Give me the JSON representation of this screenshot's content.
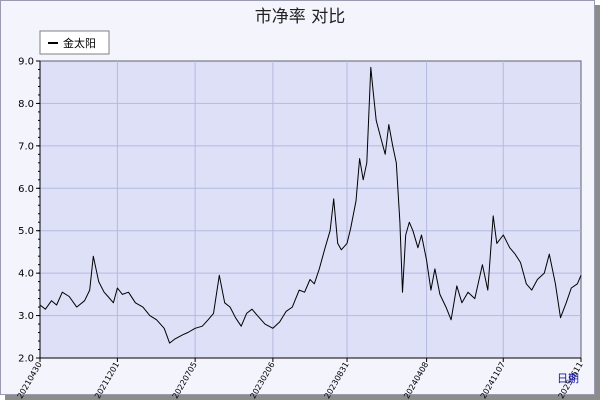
{
  "chart_data": {
    "type": "line",
    "title": "市净率  对比",
    "xlabel": "日期",
    "ylabel": "",
    "ylim": [
      2.0,
      9.0
    ],
    "yticks": [
      "2.0",
      "3.0",
      "4.0",
      "5.0",
      "6.0",
      "7.0",
      "8.0",
      "9.0"
    ],
    "x_ticks": [
      "20210430",
      "20211201",
      "20220705",
      "20230206",
      "20230831",
      "20240408",
      "20241107",
      "20250611"
    ],
    "grid": true,
    "legend_position": "top-left",
    "series": [
      {
        "name": "金太阳",
        "color": "#000000",
        "points": [
          [
            "20210430",
            3.25
          ],
          [
            "20210515",
            3.15
          ],
          [
            "20210601",
            3.35
          ],
          [
            "20210615",
            3.25
          ],
          [
            "20210701",
            3.55
          ],
          [
            "20210720",
            3.45
          ],
          [
            "20210810",
            3.2
          ],
          [
            "20210901",
            3.35
          ],
          [
            "20210915",
            3.6
          ],
          [
            "20210925",
            4.4
          ],
          [
            "20211010",
            3.8
          ],
          [
            "20211025",
            3.55
          ],
          [
            "20211105",
            3.45
          ],
          [
            "20211120",
            3.3
          ],
          [
            "20211201",
            3.65
          ],
          [
            "20211215",
            3.5
          ],
          [
            "20220101",
            3.55
          ],
          [
            "20220120",
            3.3
          ],
          [
            "20220210",
            3.2
          ],
          [
            "20220301",
            3.0
          ],
          [
            "20220320",
            2.9
          ],
          [
            "20220410",
            2.7
          ],
          [
            "20220425",
            2.35
          ],
          [
            "20220510",
            2.45
          ],
          [
            "20220601",
            2.55
          ],
          [
            "20220615",
            2.6
          ],
          [
            "20220705",
            2.7
          ],
          [
            "20220725",
            2.75
          ],
          [
            "20220810",
            2.9
          ],
          [
            "20220825",
            3.05
          ],
          [
            "20220910",
            3.95
          ],
          [
            "20220925",
            3.3
          ],
          [
            "20221010",
            3.2
          ],
          [
            "20221025",
            2.95
          ],
          [
            "20221110",
            2.75
          ],
          [
            "20221125",
            3.05
          ],
          [
            "20221210",
            3.15
          ],
          [
            "20221225",
            3.0
          ],
          [
            "20230115",
            2.8
          ],
          [
            "20230206",
            2.7
          ],
          [
            "20230225",
            2.85
          ],
          [
            "20230315",
            3.1
          ],
          [
            "20230401",
            3.2
          ],
          [
            "20230420",
            3.6
          ],
          [
            "20230505",
            3.55
          ],
          [
            "20230520",
            3.85
          ],
          [
            "20230601",
            3.75
          ],
          [
            "20230615",
            4.1
          ],
          [
            "20230701",
            4.6
          ],
          [
            "20230715",
            5.0
          ],
          [
            "20230725",
            5.75
          ],
          [
            "20230805",
            4.7
          ],
          [
            "20230815",
            4.55
          ],
          [
            "20230831",
            4.7
          ],
          [
            "20230910",
            5.05
          ],
          [
            "20230925",
            5.7
          ],
          [
            "20231005",
            6.7
          ],
          [
            "20231015",
            6.2
          ],
          [
            "20231025",
            6.6
          ],
          [
            "20231105",
            8.85
          ],
          [
            "20231112",
            8.25
          ],
          [
            "20231120",
            7.6
          ],
          [
            "20231201",
            7.25
          ],
          [
            "20231215",
            6.8
          ],
          [
            "20231225",
            7.5
          ],
          [
            "20240105",
            7.0
          ],
          [
            "20240115",
            6.6
          ],
          [
            "20240125",
            5.2
          ],
          [
            "20240201",
            3.55
          ],
          [
            "20240210",
            4.9
          ],
          [
            "20240220",
            5.2
          ],
          [
            "20240301",
            5.0
          ],
          [
            "20240315",
            4.6
          ],
          [
            "20240325",
            4.9
          ],
          [
            "20240408",
            4.3
          ],
          [
            "20240420",
            3.6
          ],
          [
            "20240501",
            4.1
          ],
          [
            "20240515",
            3.5
          ],
          [
            "20240601",
            3.2
          ],
          [
            "20240615",
            2.9
          ],
          [
            "20240701",
            3.7
          ],
          [
            "20240715",
            3.3
          ],
          [
            "20240801",
            3.55
          ],
          [
            "20240820",
            3.4
          ],
          [
            "20240910",
            4.2
          ],
          [
            "20240925",
            3.6
          ],
          [
            "20241010",
            5.35
          ],
          [
            "20241020",
            4.7
          ],
          [
            "20241107",
            4.9
          ],
          [
            "20241125",
            4.6
          ],
          [
            "20241210",
            4.45
          ],
          [
            "20241225",
            4.25
          ],
          [
            "20250110",
            3.75
          ],
          [
            "20250125",
            3.6
          ],
          [
            "20250210",
            3.85
          ],
          [
            "20250301",
            4.0
          ],
          [
            "20250315",
            4.45
          ],
          [
            "20250401",
            3.75
          ],
          [
            "20250415",
            2.95
          ],
          [
            "20250501",
            3.3
          ],
          [
            "20250515",
            3.65
          ],
          [
            "20250601",
            3.75
          ],
          [
            "20250611",
            3.95
          ]
        ]
      }
    ]
  }
}
